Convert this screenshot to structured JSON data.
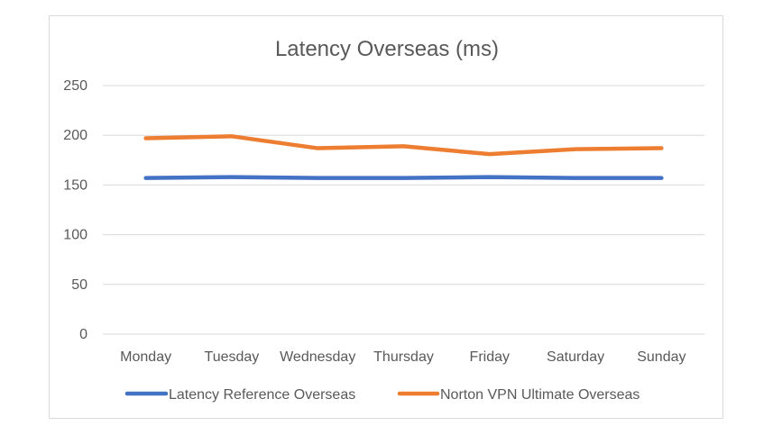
{
  "chart_data": {
    "type": "line",
    "title": "Latency Overseas (ms)",
    "xlabel": "",
    "ylabel": "",
    "categories": [
      "Monday",
      "Tuesday",
      "Wednesday",
      "Thursday",
      "Friday",
      "Saturday",
      "Sunday"
    ],
    "ylim": [
      0,
      250
    ],
    "yticks": [
      0,
      50,
      100,
      150,
      200,
      250
    ],
    "grid": true,
    "legend": "bottom",
    "series": [
      {
        "name": "Latency Reference Overseas",
        "color": "#4472c4",
        "values": [
          157,
          158,
          157,
          157,
          158,
          157,
          157
        ]
      },
      {
        "name": "Norton VPN Ultimate Overseas",
        "color": "#ed7d31",
        "values": [
          197,
          199,
          187,
          189,
          181,
          186,
          187
        ]
      }
    ]
  }
}
